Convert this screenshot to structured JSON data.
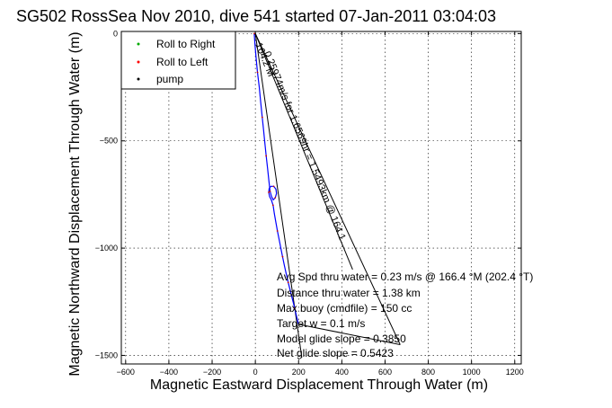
{
  "chart_data": {
    "type": "line",
    "title": "SG502 RossSea Nov 2010, dive 541 started 07-Jan-2011 03:04:03",
    "xlabel": "Magnetic Eastward Displacement Through Water (m)",
    "ylabel": "Magnetic Northward Displacement Through Water (m)",
    "xlim": [
      -620,
      1230
    ],
    "ylim": [
      -1540,
      10
    ],
    "grid": true,
    "xticks": [
      -600,
      -400,
      -200,
      0,
      200,
      400,
      600,
      800,
      1000,
      1200
    ],
    "yticks": [
      -1500,
      -1000,
      -500,
      0
    ],
    "xtick_labels": [
      "−600",
      "−400",
      "−200",
      "0",
      "200",
      "400",
      "600",
      "800",
      "1000",
      "1200"
    ],
    "ytick_labels": [
      "−1500",
      "−1000",
      "−500",
      "0"
    ],
    "legend": {
      "position": "top-left",
      "entries": [
        {
          "label": "Roll to Right",
          "color": "#00aa00",
          "marker": "."
        },
        {
          "label": "Roll to Left",
          "color": "#ff0000",
          "marker": "."
        },
        {
          "label": "pump",
          "color": "#000000",
          "marker": "."
        }
      ]
    },
    "series": [
      {
        "name": "track",
        "color": "#0000ff",
        "x": [
          -5,
          -2,
          3,
          10,
          18,
          25,
          32,
          38,
          44,
          50,
          57,
          63,
          68,
          75,
          83,
          92,
          98,
          95,
          85,
          72,
          64,
          62,
          66,
          74,
          82,
          88,
          95,
          102,
          110,
          118,
          126,
          134,
          143,
          152,
          162,
          172,
          182,
          191,
          200
        ],
        "y": [
          0,
          -50,
          -110,
          -180,
          -250,
          -320,
          -390,
          -450,
          -510,
          -570,
          -630,
          -690,
          -735,
          -760,
          -775,
          -765,
          -745,
          -725,
          -712,
          -712,
          -722,
          -740,
          -760,
          -775,
          -800,
          -840,
          -880,
          -920,
          -960,
          -1000,
          -1040,
          -1080,
          -1120,
          -1160,
          -1200,
          -1240,
          -1280,
          -1320,
          -1355
        ]
      }
    ],
    "annotation_lines": [
      {
        "name": "heading-line",
        "x": [
          0,
          215
        ],
        "y": [
          0,
          -1510
        ]
      },
      {
        "name": "current-line-a",
        "x": [
          0,
          450
        ],
        "y": [
          0,
          -1100
        ]
      },
      {
        "name": "current-line-b",
        "x": [
          0,
          670
        ],
        "y": [
          0,
          -1450
        ]
      },
      {
        "name": "current-line-c",
        "x": [
          200,
          670
        ],
        "y": [
          -1355,
          -1450
        ]
      }
    ],
    "rotated_labels": [
      {
        "text": "164.2 M",
        "x": 0,
        "y": -50,
        "angle": 68
      },
      {
        "text": "0.25974m/s for 1.6569hr = 1.5493km @ 164.1",
        "x": 40,
        "y": -90,
        "angle": 68
      }
    ],
    "info_lines": [
      "Avg Spd thru water =  0.23 m/s @ 166.4   °M (202.4 °T)",
      "Distance thru water =  1.38 km",
      "Max buoy (cmdfile) = 150 cc",
      "Target w = 0.1 m/s",
      "Model glide slope = 0.3850",
      "Net glide slope = 0.5423"
    ]
  }
}
